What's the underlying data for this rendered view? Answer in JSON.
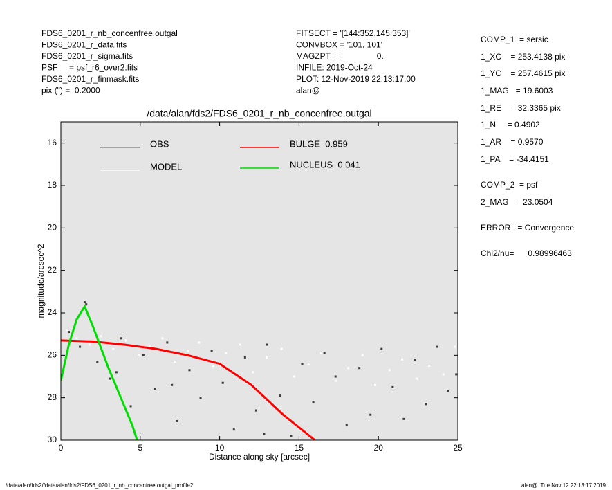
{
  "header": {
    "left": [
      "FDS6_0201_r_nb_concenfree.outgal",
      "FDS6_0201_r_data.fits",
      "FDS6_0201_r_sigma.fits",
      "PSF     = psf_r6_over2.fits",
      "FDS6_0201_r_finmask.fits",
      "pix (\") =  0.2000"
    ],
    "middle": [
      "FITSECT = '[144:352,145:353]'",
      "CONVBOX = '101, 101'",
      "MAGZPT  =                0.",
      "INFILE: 2019-Oct-24",
      "PLOT: 12-Nov-2019 22:13:17.00",
      "alan@"
    ],
    "right": [
      "COMP_1  = sersic",
      "1_XC    = 253.4138 pix",
      "1_YC    = 257.4615 pix",
      "1_MAG   = 19.6003",
      "1_RE    = 32.3365 pix",
      "1_N     = 0.4902",
      "1_AR    = 0.9570",
      "1_PA    = -34.4151",
      "COMP_2  = psf",
      "2_MAG   = 23.0504",
      "ERROR   = Convergence",
      "Chi2/nu=      0.98996463"
    ]
  },
  "chart_data": {
    "type": "scatter",
    "title": "/data/alan/fds2/FDS6_0201_r_nb_concenfree.outgal",
    "x_label": "Distance along sky [arcsec]",
    "y_label": "magnitude/arcsec^2",
    "xlim": [
      0,
      25
    ],
    "ylim": [
      30,
      15
    ],
    "xticks": [
      0,
      5,
      10,
      15,
      20,
      25
    ],
    "yticks": [
      16,
      18,
      20,
      22,
      24,
      26,
      28,
      30
    ],
    "background": "#e5e5e5",
    "series": [
      {
        "name": "OBS",
        "color": "#8c8c8c",
        "marker_color": "#3c3c3c",
        "mode": "markers",
        "x": [
          0.5,
          1.2,
          1.6,
          2.3,
          3.1,
          3.8,
          4.4,
          5.2,
          5.9,
          6.7,
          7.3,
          8.1,
          8.8,
          9.5,
          10.2,
          10.9,
          11.6,
          12.3,
          13.0,
          13.8,
          14.5,
          15.2,
          15.9,
          16.6,
          17.3,
          18.0,
          18.8,
          19.5,
          20.2,
          20.9,
          21.6,
          22.3,
          23.0,
          23.7,
          24.4,
          24.9,
          1.5,
          3.5,
          7.0,
          12.8
        ],
        "values": [
          24.9,
          25.6,
          23.6,
          26.3,
          27.1,
          25.2,
          28.4,
          26.0,
          27.6,
          25.4,
          29.1,
          26.7,
          28.0,
          25.8,
          27.3,
          29.5,
          26.1,
          28.6,
          25.5,
          27.9,
          29.8,
          26.4,
          28.2,
          25.9,
          27.0,
          29.3,
          26.6,
          28.8,
          25.7,
          27.5,
          29.0,
          26.2,
          28.3,
          25.6,
          27.7,
          26.9,
          23.5,
          26.8,
          27.4,
          29.7
        ]
      },
      {
        "name": "MODEL",
        "color": "#ffffff",
        "marker_color": "#ffffff",
        "mode": "markers",
        "x": [
          0.4,
          1.0,
          1.8,
          2.5,
          3.3,
          4.1,
          4.9,
          5.6,
          6.4,
          7.2,
          8.0,
          8.7,
          9.6,
          10.4,
          11.3,
          12.1,
          13.0,
          13.9,
          14.7,
          15.6,
          16.4,
          17.3,
          18.1,
          19.0,
          19.8,
          20.7,
          21.5,
          22.4,
          23.2,
          24.1,
          24.8
        ],
        "values": [
          24.8,
          25.2,
          25.5,
          25.1,
          25.7,
          25.3,
          26.0,
          25.6,
          25.2,
          26.3,
          25.8,
          25.4,
          26.5,
          25.9,
          25.5,
          26.8,
          26.1,
          25.7,
          27.0,
          26.4,
          25.9,
          27.2,
          26.6,
          26.0,
          27.4,
          26.7,
          26.2,
          27.1,
          26.5,
          26.9,
          25.6
        ]
      },
      {
        "name": "BULGE  0.959",
        "color": "#ff0000",
        "marker_color": "#ff0000",
        "mode": "lines",
        "x": [
          0,
          2,
          4,
          5,
          6,
          8,
          10,
          12,
          14,
          16
        ],
        "values": [
          25.3,
          25.35,
          25.5,
          25.6,
          25.7,
          26.0,
          26.4,
          27.4,
          28.8,
          30
        ]
      },
      {
        "name": "NUCLEUS  0.041",
        "color": "#00dd00",
        "marker_color": "#00dd00",
        "mode": "lines",
        "x": [
          0,
          0.5,
          1,
          1.5,
          2,
          2.5,
          3,
          3.5,
          4,
          4.5,
          4.8
        ],
        "values": [
          27.2,
          25.5,
          24.3,
          23.7,
          24.6,
          25.6,
          26.6,
          27.5,
          28.4,
          29.3,
          30
        ]
      }
    ]
  },
  "footer": {
    "left": "/data/alan/fds2//data/alan/fds2/FDS6_0201_r_nb_concenfree.outgal_profile2",
    "right": "alan@  Tue Nov 12 22:13:17 2019"
  }
}
